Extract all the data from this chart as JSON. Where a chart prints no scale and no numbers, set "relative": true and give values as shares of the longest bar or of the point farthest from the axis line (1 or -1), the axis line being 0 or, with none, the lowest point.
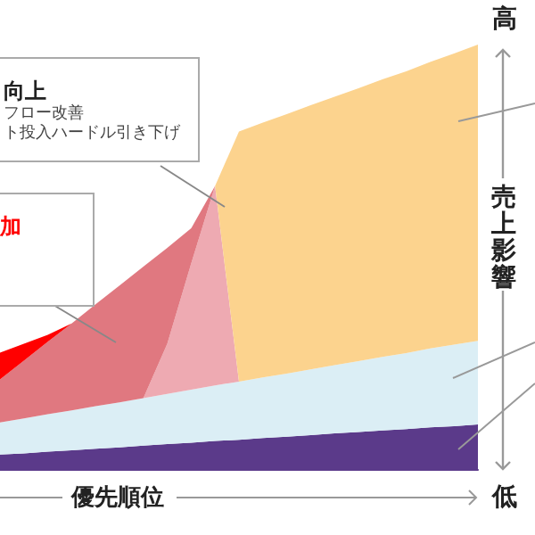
{
  "chart_data": {
    "type": "area",
    "stacked": true,
    "relative": true,
    "xlabel": "優先順位",
    "ylabel": "売上影響",
    "categories": [
      null,
      null,
      null,
      null,
      null,
      null,
      null,
      null,
      null,
      null,
      null,
      null,
      null,
      null,
      null,
      null,
      null,
      null,
      null,
      null,
      null
    ],
    "series": [
      {
        "color": "#5b3a8a",
        "values": [
          0.034,
          0.037,
          0.041,
          0.044,
          0.048,
          0.051,
          0.055,
          0.059,
          0.062,
          0.066,
          0.069,
          0.073,
          0.076,
          0.08,
          0.084,
          0.087,
          0.091,
          0.094,
          0.098,
          0.101,
          0.105
        ]
      },
      {
        "color": "#dbeef5",
        "values": [
          0.076,
          0.082,
          0.088,
          0.094,
          0.1,
          0.106,
          0.112,
          0.118,
          0.125,
          0.131,
          0.137,
          0.143,
          0.149,
          0.155,
          0.161,
          0.167,
          0.173,
          0.179,
          0.186,
          0.192,
          0.197
        ]
      },
      {
        "color": "#eeaab2",
        "values": [
          null,
          null,
          null,
          null,
          null,
          null,
          0,
          0.118,
          0.297,
          0.47,
          0,
          null,
          null,
          null,
          null,
          null,
          null,
          null,
          null,
          null,
          null
        ]
      },
      {
        "color": "#e07880",
        "values": [
          0.101,
          0.136,
          0.171,
          0.205,
          0.24,
          0.275,
          0.31,
          0.226,
          0.083,
          0,
          null,
          null,
          null,
          null,
          null,
          null,
          null,
          null,
          null,
          null,
          null
        ]
      },
      {
        "color": "#ff0000",
        "values": [
          0.063,
          0.04,
          0.016,
          0,
          null,
          null,
          null,
          null,
          null,
          null,
          null,
          null,
          null,
          null,
          null,
          null,
          null,
          null,
          null,
          null,
          null
        ]
      },
      {
        "color": "#fcd38e",
        "values": [
          null,
          null,
          null,
          null,
          null,
          null,
          null,
          null,
          null,
          0,
          0.589,
          0.6,
          0.611,
          0.622,
          0.632,
          0.643,
          0.654,
          0.664,
          0.675,
          0.686,
          0.698
        ]
      }
    ],
    "annotations": [
      "高",
      "低",
      "向上",
      "フロー改善",
      "ト投入ハードル引き下げ",
      "加"
    ]
  }
}
